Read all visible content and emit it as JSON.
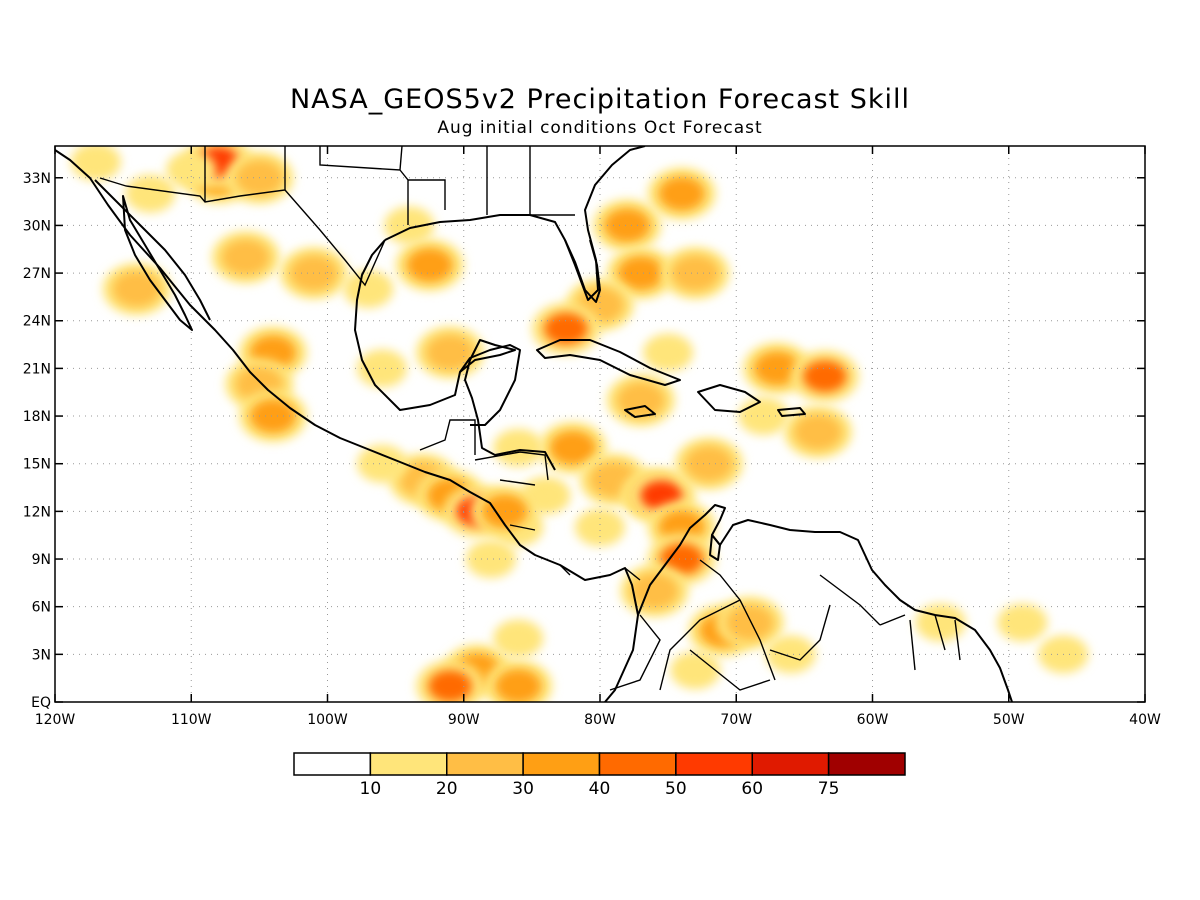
{
  "title": "NASA_GEOS5v2 Precipitation Forecast Skill",
  "subtitle": "Aug initial conditions  Oct Forecast",
  "map": {
    "lon_range": [
      -120,
      -40
    ],
    "lat_range": [
      0,
      35
    ],
    "grid": true,
    "lon_ticks": [
      {
        "value": -120,
        "label": "120W"
      },
      {
        "value": -110,
        "label": "110W"
      },
      {
        "value": -100,
        "label": "100W"
      },
      {
        "value": -90,
        "label": "90W"
      },
      {
        "value": -80,
        "label": "80W"
      },
      {
        "value": -70,
        "label": "70W"
      },
      {
        "value": -60,
        "label": "60W"
      },
      {
        "value": -50,
        "label": "50W"
      },
      {
        "value": -40,
        "label": "40W"
      }
    ],
    "lat_ticks": [
      {
        "value": 0,
        "label": "EQ"
      },
      {
        "value": 3,
        "label": "3N"
      },
      {
        "value": 6,
        "label": "6N"
      },
      {
        "value": 9,
        "label": "9N"
      },
      {
        "value": 12,
        "label": "12N"
      },
      {
        "value": 15,
        "label": "15N"
      },
      {
        "value": 18,
        "label": "18N"
      },
      {
        "value": 21,
        "label": "21N"
      },
      {
        "value": 24,
        "label": "24N"
      },
      {
        "value": 27,
        "label": "27N"
      },
      {
        "value": 30,
        "label": "30N"
      },
      {
        "value": 33,
        "label": "33N"
      }
    ]
  },
  "colorbar": {
    "colors": [
      "#ffffff",
      "#ffe57a",
      "#ffbe45",
      "#ff9f14",
      "#ff6a00",
      "#ff3a00",
      "#e01a00",
      "#a00000"
    ],
    "labels": [
      "10",
      "20",
      "30",
      "40",
      "50",
      "60",
      "75"
    ]
  },
  "skill_patches": [
    {
      "lon": -108,
      "lat": 33,
      "level": 3
    },
    {
      "lon": -108,
      "lat": 34,
      "level": 5
    },
    {
      "lon": -110,
      "lat": 33.5,
      "level": 1
    },
    {
      "lon": -105,
      "lat": 33,
      "level": 2
    },
    {
      "lon": -117,
      "lat": 34,
      "level": 1
    },
    {
      "lon": -113,
      "lat": 32,
      "level": 1
    },
    {
      "lon": -106,
      "lat": 28,
      "level": 2
    },
    {
      "lon": -114,
      "lat": 26,
      "level": 2
    },
    {
      "lon": -104,
      "lat": 22,
      "level": 3
    },
    {
      "lon": -105,
      "lat": 20,
      "level": 2
    },
    {
      "lon": -104,
      "lat": 18,
      "level": 3
    },
    {
      "lon": -101,
      "lat": 27,
      "level": 2
    },
    {
      "lon": -97,
      "lat": 26,
      "level": 1
    },
    {
      "lon": -94,
      "lat": 30,
      "level": 1
    },
    {
      "lon": -92.5,
      "lat": 27.5,
      "level": 3
    },
    {
      "lon": -91,
      "lat": 22,
      "level": 2
    },
    {
      "lon": -96,
      "lat": 21,
      "level": 1
    },
    {
      "lon": -78,
      "lat": 30,
      "level": 3
    },
    {
      "lon": -77,
      "lat": 27,
      "level": 3
    },
    {
      "lon": -74,
      "lat": 32,
      "level": 3
    },
    {
      "lon": -73,
      "lat": 27,
      "level": 2
    },
    {
      "lon": -80,
      "lat": 25,
      "level": 2
    },
    {
      "lon": -82.5,
      "lat": 23.5,
      "level": 4
    },
    {
      "lon": -75,
      "lat": 22,
      "level": 1
    },
    {
      "lon": -67,
      "lat": 21,
      "level": 3
    },
    {
      "lon": -63.5,
      "lat": 20.5,
      "level": 4
    },
    {
      "lon": -64,
      "lat": 17,
      "level": 2
    },
    {
      "lon": -68,
      "lat": 18,
      "level": 1
    },
    {
      "lon": -77,
      "lat": 19,
      "level": 2
    },
    {
      "lon": -82,
      "lat": 16,
      "level": 3
    },
    {
      "lon": -79,
      "lat": 14,
      "level": 2
    },
    {
      "lon": -76,
      "lat": 13,
      "level": 3
    },
    {
      "lon": -75.5,
      "lat": 13,
      "level": 5
    },
    {
      "lon": -74,
      "lat": 11,
      "level": 3
    },
    {
      "lon": -72,
      "lat": 15,
      "level": 2
    },
    {
      "lon": -80,
      "lat": 11,
      "level": 1
    },
    {
      "lon": -74,
      "lat": 9,
      "level": 4
    },
    {
      "lon": -76,
      "lat": 7,
      "level": 2
    },
    {
      "lon": -71,
      "lat": 4.5,
      "level": 3
    },
    {
      "lon": -69,
      "lat": 5,
      "level": 2
    },
    {
      "lon": -73,
      "lat": 2,
      "level": 1
    },
    {
      "lon": -66,
      "lat": 3,
      "level": 1
    },
    {
      "lon": -84,
      "lat": 13,
      "level": 1
    },
    {
      "lon": -86,
      "lat": 11,
      "level": 1
    },
    {
      "lon": -93,
      "lat": 14,
      "level": 2
    },
    {
      "lon": -91,
      "lat": 13,
      "level": 3
    },
    {
      "lon": -89,
      "lat": 12,
      "level": 5
    },
    {
      "lon": -87,
      "lat": 12,
      "level": 3
    },
    {
      "lon": -96,
      "lat": 15,
      "level": 1
    },
    {
      "lon": -88,
      "lat": 9,
      "level": 1
    },
    {
      "lon": -86,
      "lat": 16,
      "level": 1
    },
    {
      "lon": -89,
      "lat": 2,
      "level": 3
    },
    {
      "lon": -91,
      "lat": 1,
      "level": 4
    },
    {
      "lon": -86,
      "lat": 1,
      "level": 3
    },
    {
      "lon": -86,
      "lat": 4,
      "level": 1
    },
    {
      "lon": -49,
      "lat": 5,
      "level": 1
    },
    {
      "lon": -46,
      "lat": 3,
      "level": 1
    },
    {
      "lon": -55,
      "lat": 5,
      "level": 1
    }
  ]
}
